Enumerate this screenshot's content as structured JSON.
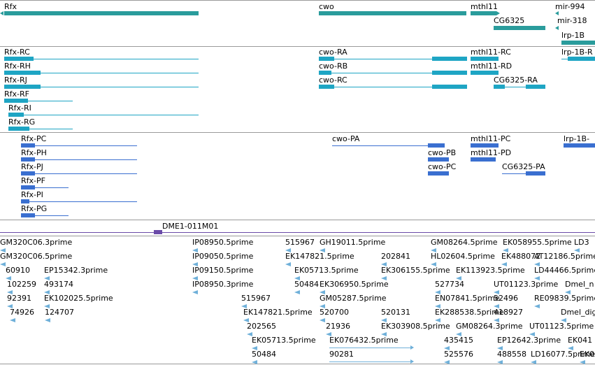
{
  "colors": {
    "gene": "#2a9c9c",
    "transcript": "#1ea5c4",
    "protein": "#3a6fd0",
    "marker": "#6a4aa8",
    "est": "#6fb0d9",
    "separator": "#9a9a9a"
  },
  "genes": [
    {
      "label": "Rfx"
    },
    {
      "label": "cwo"
    },
    {
      "label": "mthl11"
    },
    {
      "label": "mir-994"
    },
    {
      "label": "CG6325"
    },
    {
      "label": "mir-318"
    },
    {
      "label": "lrp-1B"
    }
  ],
  "transcripts": [
    {
      "label": "Rfx-RC"
    },
    {
      "label": "Rfx-RH"
    },
    {
      "label": "Rfx-RJ"
    },
    {
      "label": "Rfx-RF"
    },
    {
      "label": "Rfx-RI"
    },
    {
      "label": "Rfx-RG"
    },
    {
      "label": "cwo-RA"
    },
    {
      "label": "cwo-RB"
    },
    {
      "label": "cwo-RC"
    },
    {
      "label": "mthl11-RC"
    },
    {
      "label": "mthl11-RD"
    },
    {
      "label": "CG6325-RA"
    },
    {
      "label": "lrp-1B-R"
    }
  ],
  "proteins": [
    {
      "label": "Rfx-PC"
    },
    {
      "label": "Rfx-PH"
    },
    {
      "label": "Rfx-PJ"
    },
    {
      "label": "Rfx-PF"
    },
    {
      "label": "Rfx-PI"
    },
    {
      "label": "Rfx-PG"
    },
    {
      "label": "cwo-PA"
    },
    {
      "label": "cwo-PB"
    },
    {
      "label": "cwo-PC"
    },
    {
      "label": "mthl11-PC"
    },
    {
      "label": "mthl11-PD"
    },
    {
      "label": "CG6325-PA"
    },
    {
      "label": "lrp-1B-"
    }
  ],
  "marker": {
    "label": "DME1-011M01"
  },
  "ests": [
    {
      "label": "GM320C06.3prime"
    },
    {
      "label": "GM320C06.5prime"
    },
    {
      "label": "60910"
    },
    {
      "label": "EP15342.3prime"
    },
    {
      "label": "102259"
    },
    {
      "label": "493174"
    },
    {
      "label": "92391"
    },
    {
      "label": "EK102025.5prime"
    },
    {
      "label": "74926"
    },
    {
      "label": "124707"
    },
    {
      "label": "IP08950.5prime"
    },
    {
      "label": "IP09050.5prime"
    },
    {
      "label": "IP09150.5prime"
    },
    {
      "label": "IP08950.3prime"
    },
    {
      "label": "515967"
    },
    {
      "label": "GH19011.5prime"
    },
    {
      "label": "EK147821.5prime"
    },
    {
      "label": "EK05713.5prime"
    },
    {
      "label": "202841"
    },
    {
      "label": "50484"
    },
    {
      "label": "EK306155.5prime"
    },
    {
      "label": "EK306950.5prime"
    },
    {
      "label": "515967"
    },
    {
      "label": "GM05287.5prime"
    },
    {
      "label": "EK147821.5prime"
    },
    {
      "label": "520700"
    },
    {
      "label": "520131"
    },
    {
      "label": "202565"
    },
    {
      "label": "21936"
    },
    {
      "label": "EK303908.5prime"
    },
    {
      "label": "EK05713.5prime"
    },
    {
      "label": "EK076432.5prime"
    },
    {
      "label": "50484"
    },
    {
      "label": "90281"
    },
    {
      "label": "GM08264.5prime"
    },
    {
      "label": "EK058955.5prime"
    },
    {
      "label": "LD3"
    },
    {
      "label": "HL02604.5prime"
    },
    {
      "label": "EK488072"
    },
    {
      "label": "AT12186.5prime"
    },
    {
      "label": "EK113923.5prime"
    },
    {
      "label": "LD44466.5prime"
    },
    {
      "label": "527734"
    },
    {
      "label": "UT01123.3prime"
    },
    {
      "label": "Dmel_n"
    },
    {
      "label": "EN07841.5prime"
    },
    {
      "label": "52496"
    },
    {
      "label": "RE09839.5prime"
    },
    {
      "label": "EK288538.5prime"
    },
    {
      "label": "418927"
    },
    {
      "label": "Dmel_dig"
    },
    {
      "label": "GM08264.3prime"
    },
    {
      "label": "UT01123.5prime"
    },
    {
      "label": "435415"
    },
    {
      "label": "EP12642.3prime"
    },
    {
      "label": "EK041"
    },
    {
      "label": "525576"
    },
    {
      "label": "488558"
    },
    {
      "label": "LD16077.5prime"
    },
    {
      "label": "EK0"
    }
  ]
}
